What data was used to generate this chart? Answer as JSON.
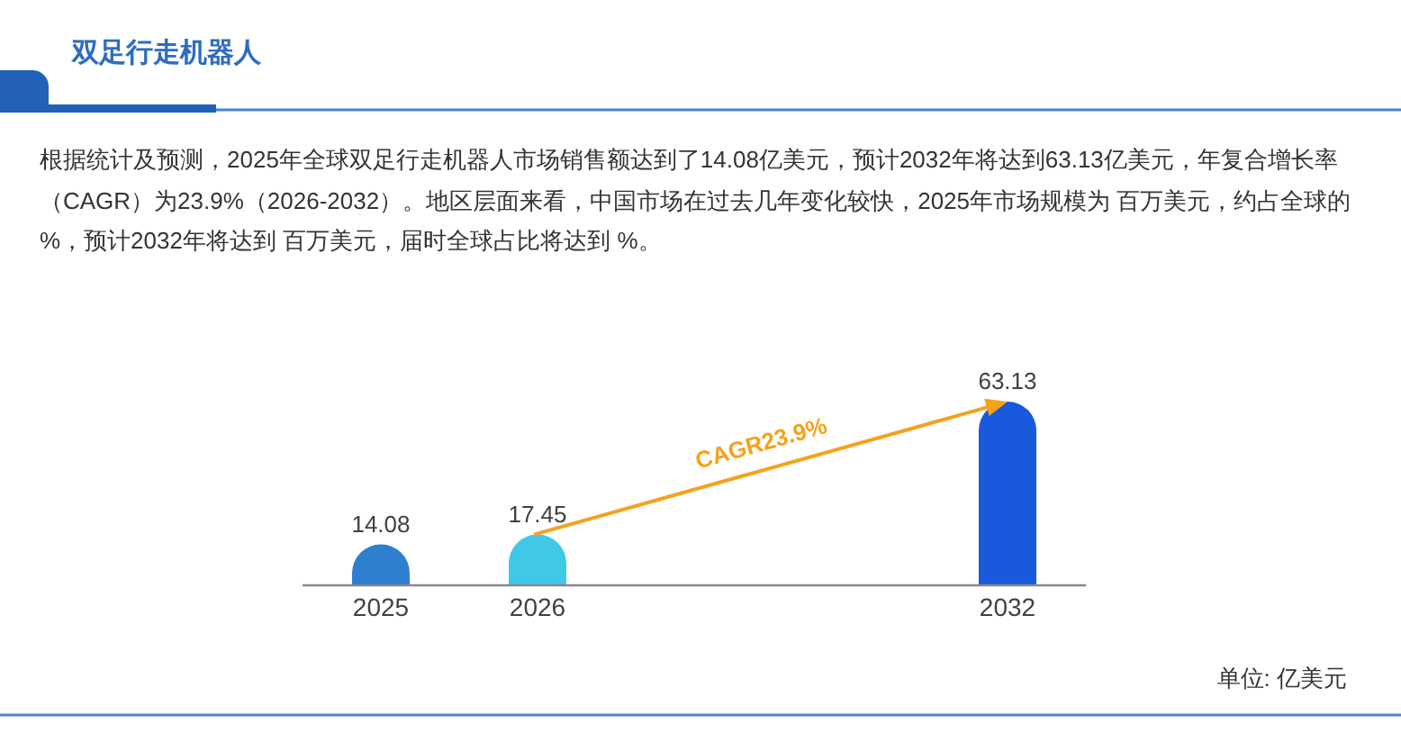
{
  "chart_data": {
    "type": "bar",
    "title": "双足行走机器人",
    "subtitle": "根据统计及预测，2025年全球双足行走机器人市场销售额达到了14.08亿美元，预计2032年将达到63.13亿美元，年复合增长率（CAGR）为23.9%（2026-2032）。地区层面来看，中国市场在过去几年变化较快，2025年市场规模为 百万美元，约占全球的 %，预计2032年将达到 百万美元，届时全球占比将达到 %。",
    "categories": [
      "2025",
      "2026",
      null,
      null,
      "2032"
    ],
    "values": [
      14.08,
      17.45,
      null,
      null,
      63.13
    ],
    "colors": [
      "#2e7fd0",
      "#40c9e6",
      null,
      null,
      "#1959dc"
    ],
    "data_labels": true,
    "annotations": [
      "CAGR23.9%",
      "单位: 亿美元"
    ]
  }
}
